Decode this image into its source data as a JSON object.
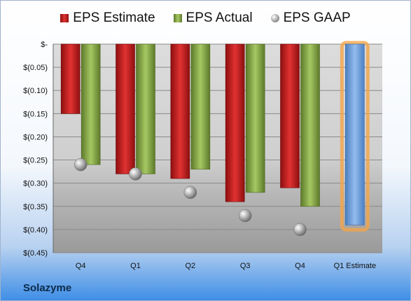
{
  "legend": {
    "estimate": "EPS Estimate",
    "actual": "EPS Actual",
    "gaap": "EPS GAAP"
  },
  "company": "Solazyme",
  "chart_data": {
    "type": "bar",
    "categories": [
      "Q4",
      "Q1",
      "Q2",
      "Q3",
      "Q4",
      "Q1 Estimate"
    ],
    "series": [
      {
        "name": "EPS Estimate",
        "values": [
          -0.15,
          -0.28,
          -0.29,
          -0.34,
          -0.31,
          null
        ],
        "color": "#d42a2a"
      },
      {
        "name": "EPS Actual",
        "values": [
          -0.26,
          -0.28,
          -0.27,
          -0.32,
          -0.35,
          null
        ],
        "color": "#8fb04a"
      },
      {
        "name": "EPS GAAP",
        "values": [
          -0.26,
          -0.28,
          -0.32,
          -0.37,
          -0.4,
          null
        ],
        "marker": "sphere"
      }
    ],
    "highlight": {
      "category": "Q1 Estimate",
      "value": -0.39,
      "color": "#6fa0dc",
      "glow": "#f2a54a"
    },
    "yticks": [
      0,
      -0.05,
      -0.1,
      -0.15,
      -0.2,
      -0.25,
      -0.3,
      -0.35,
      -0.4,
      -0.45
    ],
    "ytick_labels": [
      "$-",
      "$(0.05)",
      "$(0.10)",
      "$(0.15)",
      "$(0.20)",
      "$(0.25)",
      "$(0.30)",
      "$(0.35)",
      "$(0.40)",
      "$(0.45)"
    ],
    "ylim": [
      -0.45,
      0
    ],
    "grid": true,
    "legend_position": "top"
  }
}
